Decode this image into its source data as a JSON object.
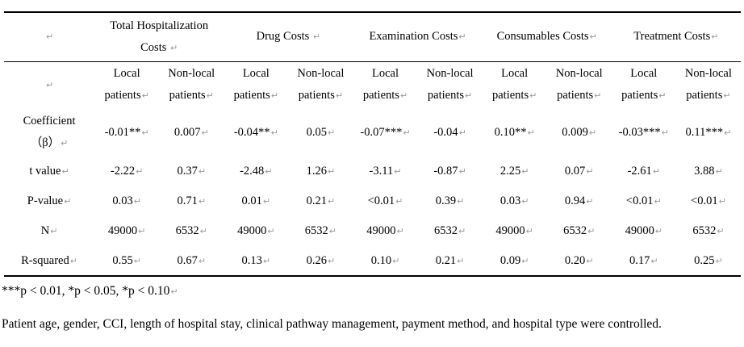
{
  "pilcrow": "↵",
  "table": {
    "groups": [
      "Total Hospitalization Costs",
      "Drug Costs",
      "Examination Costs",
      "Consumables Costs",
      "Treatment Costs"
    ],
    "sub": {
      "local": "Local patients",
      "nonlocal": "Non-local patients"
    },
    "rows": [
      {
        "label": "Coefficient\n（β）",
        "cells": [
          "-0.01**",
          "0.007",
          "-0.04**",
          "0.05",
          "-0.07***",
          "-0.04",
          "0.10**",
          "0.009",
          "-0.03***",
          "0.11***"
        ]
      },
      {
        "label": "t value",
        "cells": [
          "-2.22",
          "0.37",
          "-2.48",
          "1.26",
          "-3.11",
          "-0.87",
          "2.25",
          "0.07",
          "-2.61",
          "3.88"
        ]
      },
      {
        "label": "P-value",
        "cells": [
          "0.03",
          "0.71",
          "0.01",
          "0.21",
          "<0.01",
          "0.39",
          "0.03",
          "0.94",
          "<0.01",
          "<0.01"
        ]
      },
      {
        "label": "N",
        "cells": [
          "49000",
          "6532",
          "49000",
          "6532",
          "49000",
          "6532",
          "49000",
          "6532",
          "49000",
          "6532"
        ]
      },
      {
        "label": "R-squared",
        "cells": [
          "0.55",
          "0.67",
          "0.13",
          "0.26",
          "0.10",
          "0.21",
          "0.09",
          "0.20",
          "0.17",
          "0.25"
        ]
      }
    ]
  },
  "footnotes": {
    "significance": "***p < 0.01, *p < 0.05, *p < 0.10",
    "controls": "Patient age, gender, CCI, length of hospital stay, clinical pathway management, payment method, and hospital type were controlled."
  }
}
